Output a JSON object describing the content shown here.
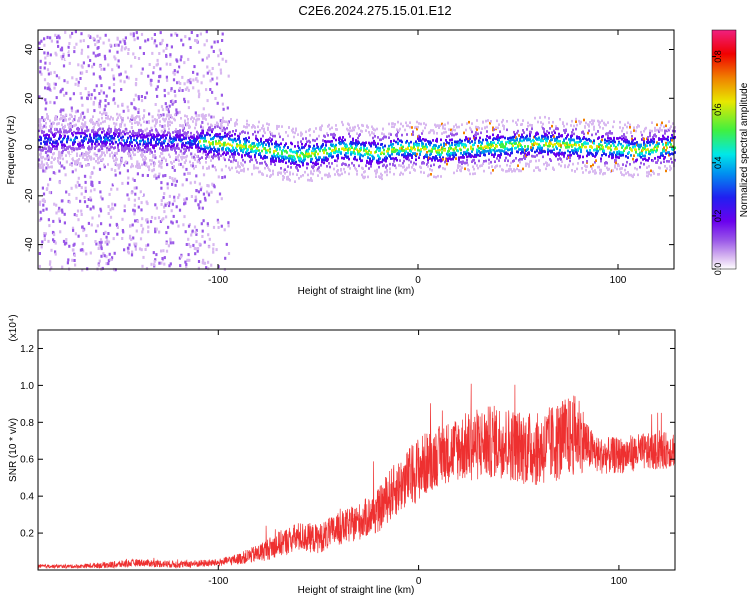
{
  "title": "C2E6.2024.275.15.01.E12",
  "colors": {
    "snr_line": "#ee3030",
    "colormap": [
      "#ffffff",
      "#d8b8f0",
      "#9a58e8",
      "#6a00ee",
      "#2020f0",
      "#0090f0",
      "#00e8e8",
      "#40f040",
      "#e8e800",
      "#f08000",
      "#f00000",
      "#f02080"
    ]
  },
  "chart_data": [
    {
      "type": "heatmap",
      "xlabel": "Height of straight line (km)",
      "ylabel": "Frequency (Hz)",
      "xlim": [
        -190,
        128
      ],
      "ylim": [
        -50,
        48
      ],
      "xticks": [
        -100,
        0,
        100
      ],
      "xtick_labels": [
        "-100",
        "0",
        "100"
      ],
      "yticks": [
        40,
        20,
        0,
        -20,
        -40
      ],
      "ytick_labels": [
        "40",
        "20",
        "0",
        "-20",
        "-40"
      ],
      "grid": false,
      "colorbar": {
        "label": "Normalized spectral amplitude",
        "range": [
          0.0,
          0.9
        ],
        "ticks": [
          0.0,
          0.2,
          0.4,
          0.6,
          0.8
        ],
        "tick_labels": [
          "0.0",
          "0.2",
          "0.4",
          "0.6",
          "0.8"
        ]
      },
      "band_center": {
        "x": [
          -190,
          -160,
          -140,
          -120,
          -100,
          -80,
          -60,
          -50,
          -40,
          -20,
          -10,
          0,
          10,
          20,
          40,
          60,
          80,
          100,
          110,
          128
        ],
        "y": [
          3,
          4,
          3,
          3,
          2,
          0,
          -3,
          -2,
          0,
          -2,
          0,
          0,
          -1,
          0,
          1,
          2,
          1,
          0,
          -1,
          1
        ]
      }
    },
    {
      "type": "line",
      "xlabel": "Height of straight line (km)",
      "ylabel": "SNR (10 * v/v)",
      "y_multiplier": "(x10⁴)",
      "xlim": [
        -190,
        128
      ],
      "ylim": [
        0.0,
        1.3
      ],
      "xticks": [
        -100,
        0,
        100
      ],
      "xtick_labels": [
        "-100",
        "0",
        "100"
      ],
      "yticks": [
        0.2,
        0.4,
        0.6,
        0.8,
        1.0,
        1.2
      ],
      "ytick_labels": [
        "0.2",
        "0.4",
        "0.6",
        "0.8",
        "1.0",
        "1.2"
      ],
      "grid": false,
      "series": [
        {
          "x": [
            -190,
            -170,
            -150,
            -140,
            -120,
            -100,
            -90,
            -80,
            -70,
            -60,
            -50,
            -40,
            -30,
            -20,
            -15,
            -10,
            -5,
            0,
            10,
            20,
            30,
            40,
            50,
            60,
            70,
            80,
            85,
            90,
            100,
            110,
            120,
            128
          ],
          "y": [
            0.02,
            0.02,
            0.03,
            0.04,
            0.03,
            0.04,
            0.06,
            0.09,
            0.14,
            0.18,
            0.17,
            0.22,
            0.26,
            0.32,
            0.4,
            0.45,
            0.5,
            0.55,
            0.62,
            0.66,
            0.68,
            0.7,
            0.67,
            0.65,
            0.7,
            0.74,
            0.66,
            0.62,
            0.62,
            0.64,
            0.64,
            0.66
          ],
          "spread": [
            0.01,
            0.01,
            0.02,
            0.02,
            0.02,
            0.02,
            0.03,
            0.05,
            0.07,
            0.08,
            0.08,
            0.09,
            0.1,
            0.12,
            0.14,
            0.15,
            0.16,
            0.18,
            0.16,
            0.18,
            0.2,
            0.2,
            0.2,
            0.2,
            0.22,
            0.22,
            0.12,
            0.1,
            0.1,
            0.1,
            0.1,
            0.1
          ]
        }
      ]
    }
  ]
}
